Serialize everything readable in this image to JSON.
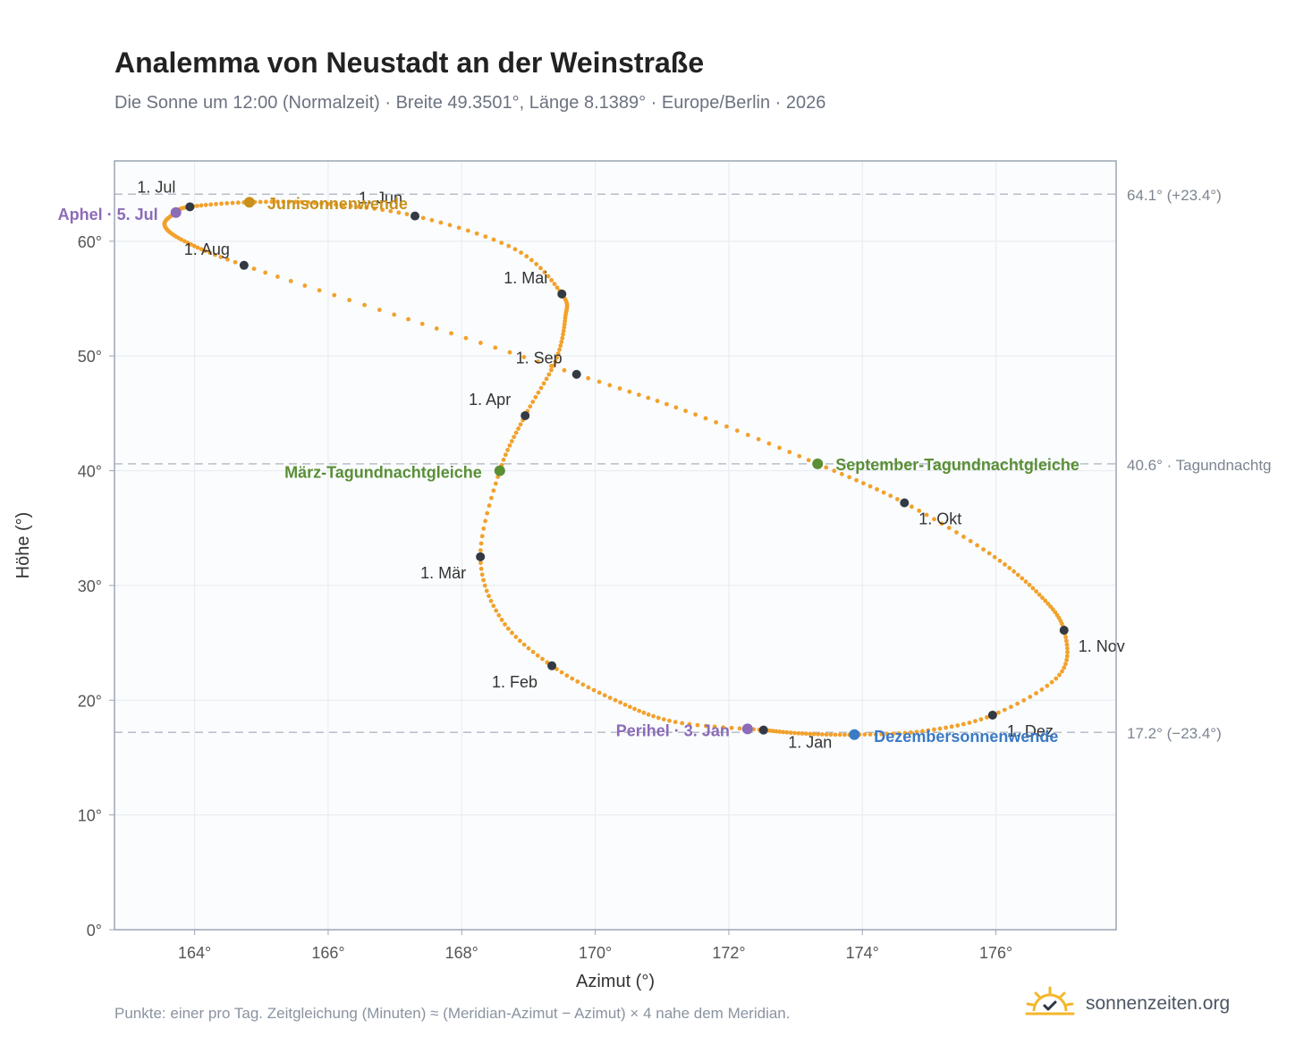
{
  "header": {
    "title": "Analemma von Neustadt an der Weinstraße",
    "subtitle": "Die Sonne um 12:00 (Normalzeit) · Breite 49.3501°, Länge 8.1389° · Europe/Berlin · 2026"
  },
  "footer": {
    "note": "Punkte: einer pro Tag. Zeitgleichung (Minuten) ≈ (Meridian-Azimut − Azimut) × 4 nahe dem Meridian.",
    "brand": "sonnenzeiten.org",
    "brand_icon": "sun-check-icon"
  },
  "colors": {
    "curve": "#f2a12b",
    "month_marker": "#333a44",
    "solstice_june": "#c9901a",
    "solstice_december": "#3b7ac4",
    "equinox": "#5a8f35",
    "apsis": "#8c6bb8",
    "plot_bg": "#fafcfe",
    "grid": "#e6eaef",
    "reference_line": "#b7bec8"
  },
  "chart_data": {
    "type": "scatter",
    "xlabel": "Azimut (°)",
    "ylabel": "Höhe (°)",
    "xlim": [
      162.8,
      177.8
    ],
    "ylim": [
      0,
      67
    ],
    "x_ticks": [
      164,
      166,
      168,
      170,
      172,
      174,
      176
    ],
    "x_tick_labels": [
      "164°",
      "166°",
      "168°",
      "170°",
      "172°",
      "174°",
      "176°"
    ],
    "y_ticks": [
      0,
      10,
      20,
      30,
      40,
      50,
      60
    ],
    "y_tick_labels": [
      "0°",
      "10°",
      "20°",
      "30°",
      "40°",
      "50°",
      "60°"
    ],
    "grid": true,
    "reference_lines": [
      {
        "y": 64.1,
        "label": "64.1° (+23.4°)"
      },
      {
        "y": 40.6,
        "label": "40.6° · Tagundnachtg"
      },
      {
        "y": 17.2,
        "label": "17.2° (−23.4°)"
      }
    ],
    "month_markers": [
      {
        "label": "1. Jan",
        "x": 172.52,
        "y": 17.4
      },
      {
        "label": "1. Feb",
        "x": 169.35,
        "y": 23.0
      },
      {
        "label": "1. Mär",
        "x": 168.28,
        "y": 32.5
      },
      {
        "label": "1. Apr",
        "x": 168.95,
        "y": 44.8
      },
      {
        "label": "1. Mai",
        "x": 169.5,
        "y": 55.4
      },
      {
        "label": "1. Jun",
        "x": 167.3,
        "y": 62.2
      },
      {
        "label": "1. Jul",
        "x": 163.93,
        "y": 63.0
      },
      {
        "label": "1. Aug",
        "x": 164.74,
        "y": 57.9
      },
      {
        "label": "1. Sep",
        "x": 169.72,
        "y": 48.4
      },
      {
        "label": "1. Okt",
        "x": 174.63,
        "y": 37.2
      },
      {
        "label": "1. Nov",
        "x": 177.02,
        "y": 26.1
      },
      {
        "label": "1. Dez",
        "x": 175.95,
        "y": 18.7
      }
    ],
    "events": [
      {
        "label": "Junisonnenwende",
        "x": 164.82,
        "y": 63.4,
        "kind": "solstice_june"
      },
      {
        "label": "Dezembersonnenwende",
        "x": 173.88,
        "y": 17.0,
        "kind": "solstice_december"
      },
      {
        "label": "März-Tagundnachtgleiche",
        "x": 168.57,
        "y": 40.0,
        "kind": "equinox"
      },
      {
        "label": "September-Tagundnachtgleiche",
        "x": 173.33,
        "y": 40.6,
        "kind": "equinox"
      },
      {
        "label": "Aphel · 5. Jul",
        "x": 163.72,
        "y": 62.5,
        "kind": "apsis"
      },
      {
        "label": "Perihel · 3. Jan",
        "x": 172.28,
        "y": 17.5,
        "kind": "apsis"
      }
    ],
    "curve_path": [
      {
        "x": 172.52,
        "y": 17.4
      },
      {
        "x": 171.2,
        "y": 18.1
      },
      {
        "x": 170.3,
        "y": 20.0
      },
      {
        "x": 169.35,
        "y": 23.0
      },
      {
        "x": 168.6,
        "y": 27.0
      },
      {
        "x": 168.28,
        "y": 32.5
      },
      {
        "x": 168.57,
        "y": 40.0
      },
      {
        "x": 168.95,
        "y": 44.8
      },
      {
        "x": 169.4,
        "y": 49.5
      },
      {
        "x": 169.55,
        "y": 53.3
      },
      {
        "x": 169.5,
        "y": 55.4
      },
      {
        "x": 168.8,
        "y": 59.3
      },
      {
        "x": 167.3,
        "y": 62.2
      },
      {
        "x": 165.9,
        "y": 63.3
      },
      {
        "x": 164.82,
        "y": 63.4
      },
      {
        "x": 163.93,
        "y": 63.0
      },
      {
        "x": 163.72,
        "y": 62.5
      },
      {
        "x": 163.55,
        "y": 61.4
      },
      {
        "x": 163.85,
        "y": 60.0
      },
      {
        "x": 164.74,
        "y": 57.9
      },
      {
        "x": 167.2,
        "y": 53.2
      },
      {
        "x": 169.72,
        "y": 48.4
      },
      {
        "x": 171.5,
        "y": 44.9
      },
      {
        "x": 173.33,
        "y": 40.6
      },
      {
        "x": 174.63,
        "y": 37.2
      },
      {
        "x": 175.9,
        "y": 32.8
      },
      {
        "x": 176.65,
        "y": 29.2
      },
      {
        "x": 177.02,
        "y": 26.1
      },
      {
        "x": 176.95,
        "y": 22.2
      },
      {
        "x": 175.95,
        "y": 18.7
      },
      {
        "x": 174.9,
        "y": 17.3
      },
      {
        "x": 173.88,
        "y": 17.0
      },
      {
        "x": 173.1,
        "y": 17.1
      },
      {
        "x": 172.52,
        "y": 17.4
      }
    ]
  }
}
